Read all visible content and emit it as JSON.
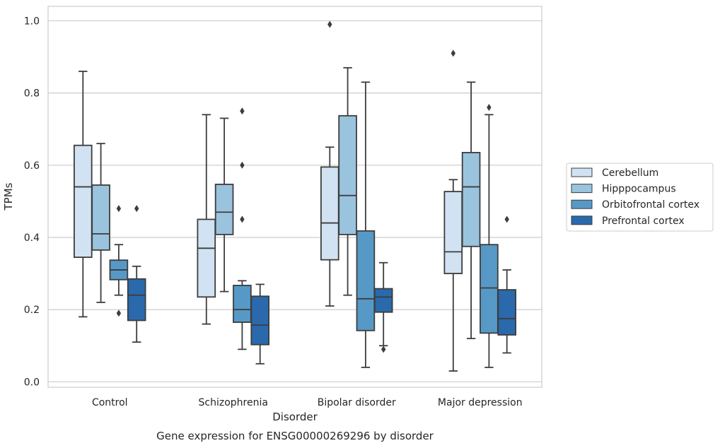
{
  "caption": "Gene expression for ENSG00000269296 by disorder",
  "chart_data": {
    "type": "box",
    "xlabel": "Disorder",
    "ylabel": "TPMs",
    "ylim": [
      -0.015,
      1.04
    ],
    "yticks": [
      "0.0",
      "0.2",
      "0.4",
      "0.6",
      "0.8",
      "1.0"
    ],
    "grid": true,
    "legend_position": "right",
    "categories": [
      "Control",
      "Schizophrenia",
      "Bipolar disorder",
      "Major depression"
    ],
    "series": [
      {
        "name": "Cerebellum",
        "color": "#d1e2f2",
        "boxes": [
          {
            "q1": 0.345,
            "median": 0.54,
            "q3": 0.655,
            "whisker_low": 0.18,
            "whisker_high": 0.86,
            "outliers": []
          },
          {
            "q1": 0.235,
            "median": 0.37,
            "q3": 0.45,
            "whisker_low": 0.16,
            "whisker_high": 0.74,
            "outliers": []
          },
          {
            "q1": 0.338,
            "median": 0.44,
            "q3": 0.595,
            "whisker_low": 0.21,
            "whisker_high": 0.65,
            "outliers": [
              0.99
            ]
          },
          {
            "q1": 0.3,
            "median": 0.36,
            "q3": 0.527,
            "whisker_low": 0.03,
            "whisker_high": 0.56,
            "outliers": [
              0.91
            ]
          }
        ]
      },
      {
        "name": "Hipppocampus",
        "color": "#9ac3de",
        "boxes": [
          {
            "q1": 0.365,
            "median": 0.41,
            "q3": 0.545,
            "whisker_low": 0.22,
            "whisker_high": 0.66,
            "outliers": []
          },
          {
            "q1": 0.408,
            "median": 0.47,
            "q3": 0.547,
            "whisker_low": 0.25,
            "whisker_high": 0.73,
            "outliers": []
          },
          {
            "q1": 0.408,
            "median": 0.516,
            "q3": 0.737,
            "whisker_low": 0.24,
            "whisker_high": 0.87,
            "outliers": []
          },
          {
            "q1": 0.375,
            "median": 0.54,
            "q3": 0.635,
            "whisker_low": 0.12,
            "whisker_high": 0.83,
            "outliers": []
          }
        ]
      },
      {
        "name": "Orbitofrontal cortex",
        "color": "#5799c6",
        "boxes": [
          {
            "q1": 0.283,
            "median": 0.31,
            "q3": 0.337,
            "whisker_low": 0.24,
            "whisker_high": 0.38,
            "outliers": [
              0.48,
              0.19
            ]
          },
          {
            "q1": 0.165,
            "median": 0.2,
            "q3": 0.267,
            "whisker_low": 0.09,
            "whisker_high": 0.28,
            "outliers": [
              0.75,
              0.6,
              0.45
            ]
          },
          {
            "q1": 0.142,
            "median": 0.23,
            "q3": 0.418,
            "whisker_low": 0.04,
            "whisker_high": 0.83,
            "outliers": []
          },
          {
            "q1": 0.135,
            "median": 0.26,
            "q3": 0.38,
            "whisker_low": 0.04,
            "whisker_high": 0.74,
            "outliers": [
              0.76
            ]
          }
        ]
      },
      {
        "name": "Prefrontal cortex",
        "color": "#2a69ab",
        "boxes": [
          {
            "q1": 0.17,
            "median": 0.24,
            "q3": 0.285,
            "whisker_low": 0.11,
            "whisker_high": 0.32,
            "outliers": [
              0.48
            ]
          },
          {
            "q1": 0.103,
            "median": 0.157,
            "q3": 0.237,
            "whisker_low": 0.05,
            "whisker_high": 0.27,
            "outliers": []
          },
          {
            "q1": 0.193,
            "median": 0.235,
            "q3": 0.258,
            "whisker_low": 0.1,
            "whisker_high": 0.33,
            "outliers": [
              0.09
            ]
          },
          {
            "q1": 0.13,
            "median": 0.175,
            "q3": 0.255,
            "whisker_low": 0.08,
            "whisker_high": 0.31,
            "outliers": [
              0.45
            ]
          }
        ]
      }
    ]
  }
}
